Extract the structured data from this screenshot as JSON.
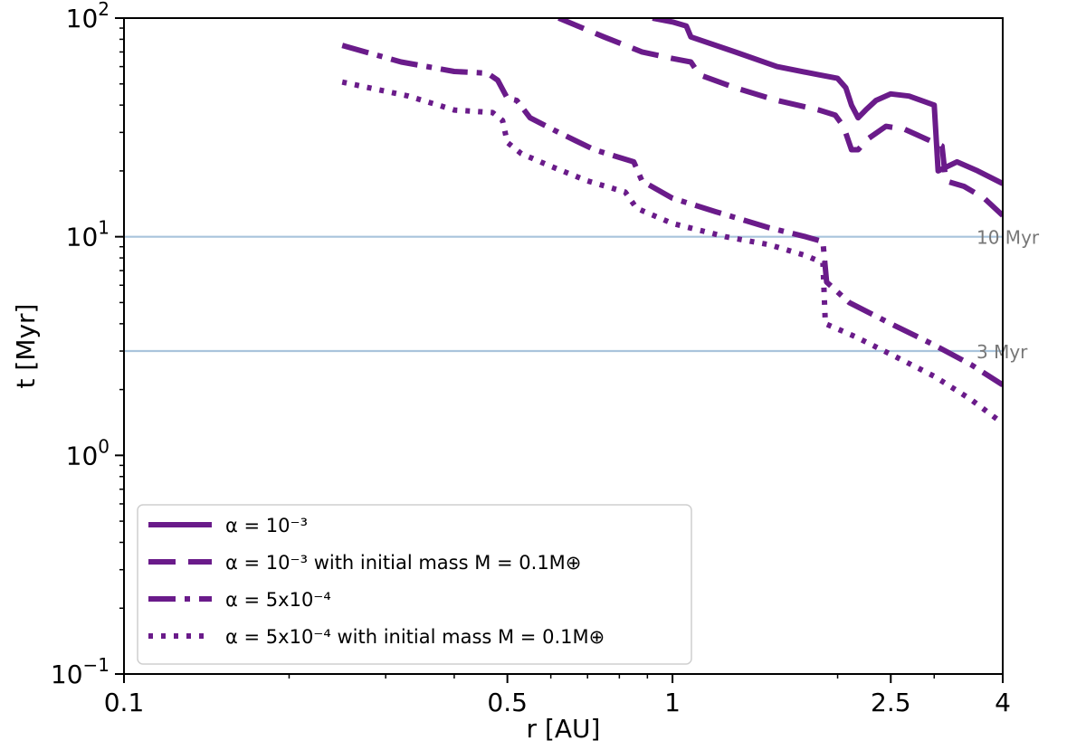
{
  "chart_data": {
    "type": "line",
    "xlabel": "r [AU]",
    "ylabel": "t [Myr]",
    "x_scale": "log",
    "y_scale": "log",
    "xlim": [
      0.1,
      4
    ],
    "ylim": [
      0.1,
      100
    ],
    "x_ticks": [
      {
        "value": 0.1,
        "label": "0.1"
      },
      {
        "value": 0.5,
        "label": "0.5"
      },
      {
        "value": 1,
        "label": "1"
      },
      {
        "value": 2.5,
        "label": "2.5"
      },
      {
        "value": 4,
        "label": "4"
      }
    ],
    "y_ticks": [
      {
        "value": 0.1,
        "base": "10",
        "exp": "−1"
      },
      {
        "value": 1,
        "base": "10",
        "exp": "0"
      },
      {
        "value": 10,
        "base": "10",
        "exp": "1"
      },
      {
        "value": 100,
        "base": "10",
        "exp": "2"
      }
    ],
    "grid": false,
    "legend_position": "lower-left",
    "color": "#6a1b8a",
    "reference_lines": [
      {
        "y": 10,
        "label": "10 Myr",
        "color": "#a9c4dc"
      },
      {
        "y": 3,
        "label": "3 Myr",
        "color": "#a9c4dc"
      }
    ],
    "series": [
      {
        "name": "α = 10⁻³",
        "style": "solid",
        "points": [
          [
            0.92,
            100
          ],
          [
            1.0,
            96
          ],
          [
            1.06,
            92
          ],
          [
            1.08,
            82
          ],
          [
            1.3,
            70
          ],
          [
            1.55,
            60
          ],
          [
            1.85,
            55
          ],
          [
            2.0,
            53
          ],
          [
            2.07,
            48
          ],
          [
            2.12,
            40
          ],
          [
            2.18,
            35
          ],
          [
            2.25,
            38
          ],
          [
            2.35,
            42
          ],
          [
            2.5,
            45
          ],
          [
            2.7,
            44
          ],
          [
            3.0,
            40
          ],
          [
            3.05,
            20
          ],
          [
            3.3,
            22
          ],
          [
            3.6,
            20
          ],
          [
            4.0,
            17.5
          ]
        ]
      },
      {
        "name": "α = 10⁻³ with initial mass M = 0.1M⊕",
        "style": "dashed",
        "points": [
          [
            0.62,
            100
          ],
          [
            0.75,
            82
          ],
          [
            0.88,
            70
          ],
          [
            0.98,
            66
          ],
          [
            1.08,
            63
          ],
          [
            1.12,
            55
          ],
          [
            1.3,
            48
          ],
          [
            1.55,
            42
          ],
          [
            1.85,
            38
          ],
          [
            1.98,
            36
          ],
          [
            2.05,
            32
          ],
          [
            2.12,
            25
          ],
          [
            2.18,
            25
          ],
          [
            2.27,
            28
          ],
          [
            2.45,
            32
          ],
          [
            2.65,
            31
          ],
          [
            2.9,
            28
          ],
          [
            3.1,
            26
          ],
          [
            3.15,
            18
          ],
          [
            3.4,
            17
          ],
          [
            3.7,
            15
          ],
          [
            4.0,
            12.5
          ]
        ]
      },
      {
        "name": "α = 5x10⁻⁴",
        "style": "dashdot",
        "points": [
          [
            0.25,
            75
          ],
          [
            0.32,
            63
          ],
          [
            0.4,
            57
          ],
          [
            0.46,
            56
          ],
          [
            0.48,
            52
          ],
          [
            0.5,
            43
          ],
          [
            0.52,
            42
          ],
          [
            0.55,
            35
          ],
          [
            0.62,
            30
          ],
          [
            0.72,
            25
          ],
          [
            0.85,
            22
          ],
          [
            0.88,
            18
          ],
          [
            1.0,
            15
          ],
          [
            1.2,
            13
          ],
          [
            1.5,
            11
          ],
          [
            1.75,
            10
          ],
          [
            1.88,
            9.5
          ],
          [
            1.91,
            6.2
          ],
          [
            2.1,
            5.0
          ],
          [
            2.5,
            4.0
          ],
          [
            3.0,
            3.2
          ],
          [
            3.5,
            2.6
          ],
          [
            4.0,
            2.1
          ]
        ]
      },
      {
        "name": "α = 5x10⁻⁴ with initial mass M = 0.1M⊕",
        "style": "dotted",
        "points": [
          [
            0.25,
            51
          ],
          [
            0.33,
            44
          ],
          [
            0.4,
            38
          ],
          [
            0.47,
            37
          ],
          [
            0.49,
            34
          ],
          [
            0.5,
            27
          ],
          [
            0.53,
            24
          ],
          [
            0.6,
            21
          ],
          [
            0.7,
            18
          ],
          [
            0.82,
            16
          ],
          [
            0.86,
            13.5
          ],
          [
            1.0,
            11.5
          ],
          [
            1.25,
            10
          ],
          [
            1.5,
            9.2
          ],
          [
            1.75,
            8.2
          ],
          [
            1.88,
            7.6
          ],
          [
            1.9,
            4.0
          ],
          [
            2.15,
            3.5
          ],
          [
            2.5,
            2.9
          ],
          [
            3.0,
            2.3
          ],
          [
            3.5,
            1.8
          ],
          [
            4.0,
            1.4
          ]
        ]
      }
    ]
  }
}
